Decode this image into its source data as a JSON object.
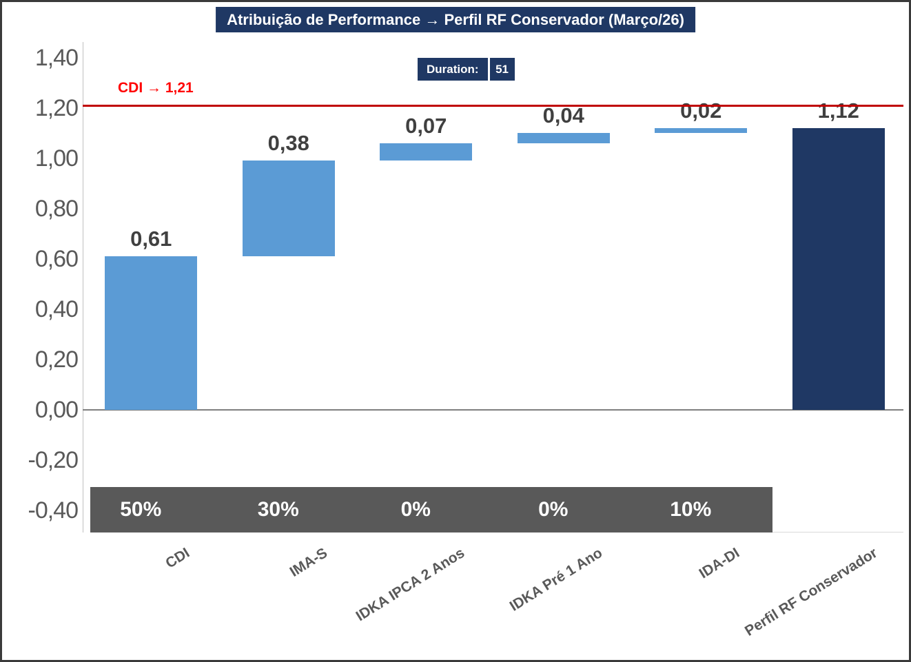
{
  "window": {
    "background": "#FFFFFF",
    "frame_border_color": "#3A3A3A"
  },
  "title": {
    "text": "Atribuição de Performance → Perfil RF Conservador (Março/26)",
    "bg_color": "#1F3864",
    "text_color": "#FFFFFF"
  },
  "duration_badge": {
    "label": "Duration:",
    "value": "51",
    "bg_color": "#1F3864",
    "text_color": "#FFFFFF"
  },
  "reference_line": {
    "label": "CDI → 1,21",
    "value": 1.21,
    "line_color": "#C00000",
    "label_color": "#FF0000"
  },
  "chart_data": {
    "type": "waterfall",
    "title": "Atribuição de Performance → Perfil RF Conservador (Março/26)",
    "categories": [
      "CDI",
      "IMA-S",
      "IDKA IPCA 2 Anos",
      "IDKA Pré 1 Ano",
      "IDA-DI",
      "Perfil RF Conservador"
    ],
    "segments": [
      {
        "category": "CDI",
        "value": 0.61,
        "label": "0,61",
        "start": 0.0,
        "end": 0.61,
        "weight": "50%",
        "color": "#5B9BD5",
        "is_total": false
      },
      {
        "category": "IMA-S",
        "value": 0.38,
        "label": "0,38",
        "start": 0.61,
        "end": 0.99,
        "weight": "30%",
        "color": "#5B9BD5",
        "is_total": false
      },
      {
        "category": "IDKA IPCA 2 Anos",
        "value": 0.07,
        "label": "0,07",
        "start": 0.99,
        "end": 1.06,
        "weight": "0%",
        "color": "#5B9BD5",
        "is_total": false
      },
      {
        "category": "IDKA Pré 1 Ano",
        "value": 0.04,
        "label": "0,04",
        "start": 1.06,
        "end": 1.1,
        "weight": "0%",
        "color": "#5B9BD5",
        "is_total": false
      },
      {
        "category": "IDA-DI",
        "value": 0.02,
        "label": "0,02",
        "start": 1.1,
        "end": 1.12,
        "weight": "10%",
        "color": "#5B9BD5",
        "is_total": false
      },
      {
        "category": "Perfil RF Conservador",
        "value": 1.12,
        "label": "1,12",
        "start": 0.0,
        "end": 1.12,
        "weight": null,
        "color": "#1F3864",
        "is_total": true
      }
    ],
    "y_axis": {
      "min": -0.4,
      "max": 1.4,
      "step": 0.2,
      "tick_values": [
        1.4,
        1.2,
        1.0,
        0.8,
        0.6,
        0.4,
        0.2,
        0.0,
        -0.2,
        -0.4
      ],
      "tick_labels": [
        "1,40",
        "1,20",
        "1,00",
        "0,80",
        "0,60",
        "0,40",
        "0,20",
        "0,00",
        "-0,20",
        "-0,40"
      ],
      "label_color": "#595959"
    },
    "reference_line": {
      "value": 1.21,
      "label": "CDI → 1,21"
    },
    "weights_band": {
      "bg_color": "#595959",
      "text_color": "#FFFFFF",
      "labels": [
        "50%",
        "30%",
        "0%",
        "0%",
        "10%"
      ]
    },
    "bar_label_color": "#404040",
    "category_label_color": "#595959",
    "axis_line_color": "#7F7F7F",
    "gridlines": false,
    "legend": false
  }
}
